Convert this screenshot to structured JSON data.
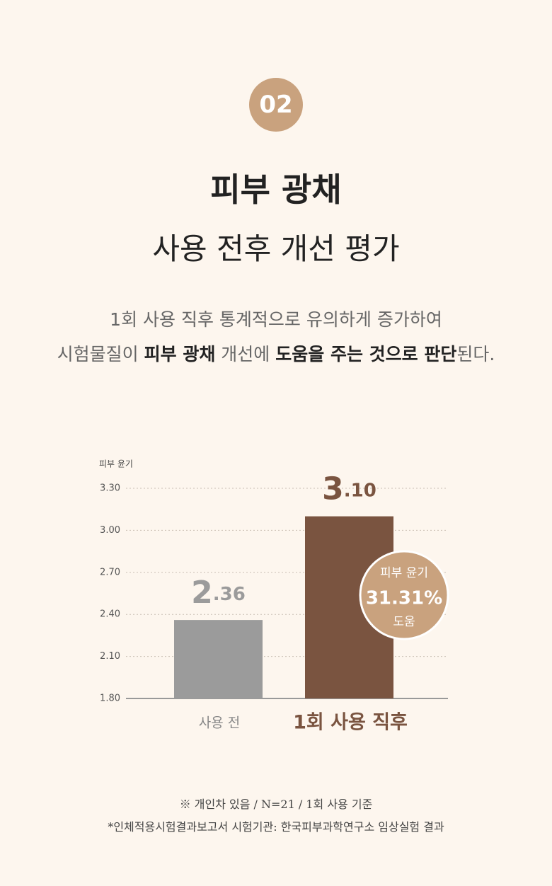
{
  "badge": "02",
  "title": [
    "피부 광채",
    "사용 전후 개선 평가"
  ],
  "description": [
    [
      {
        "text": "1회 사용 직후 통계적으로 유의하게 증가하여",
        "bold": false
      }
    ],
    [
      {
        "text": "시험물질이 ",
        "bold": false
      },
      {
        "text": "피부 광채",
        "bold": true
      },
      {
        "text": " 개선에 ",
        "bold": false
      },
      {
        "text": "도움을 주는 것으로 판단",
        "bold": true
      },
      {
        "text": "된다.",
        "bold": false
      }
    ]
  ],
  "chart_data": {
    "type": "bar",
    "y_label": "피부 윤기",
    "categories": [
      "사용 전",
      "1회 사용 직후"
    ],
    "values": [
      2.36,
      3.1
    ],
    "value_labels": [
      "2.36",
      "3.10"
    ],
    "colors": [
      "#9b9b9b",
      "#7a5440"
    ],
    "ylim": [
      1.8,
      3.3
    ],
    "yticks": [
      {
        "value": 1.8,
        "label": "1.80"
      },
      {
        "value": 2.1,
        "label": "2.10"
      },
      {
        "value": 2.4,
        "label": "2.40"
      },
      {
        "value": 2.7,
        "label": "2.70"
      },
      {
        "value": 3.0,
        "label": "3.00"
      },
      {
        "value": 3.3,
        "label": "3.30"
      }
    ],
    "grid": true,
    "annotation": [
      "피부 윤기",
      "31.31%",
      "도움"
    ]
  },
  "footnotes": [
    "※ 개인차 있음 / N=21 / 1회 사용 기준",
    "*인체적용시험결과보고서 시험기관: 한국피부과학연구소 임상실험 결과"
  ]
}
